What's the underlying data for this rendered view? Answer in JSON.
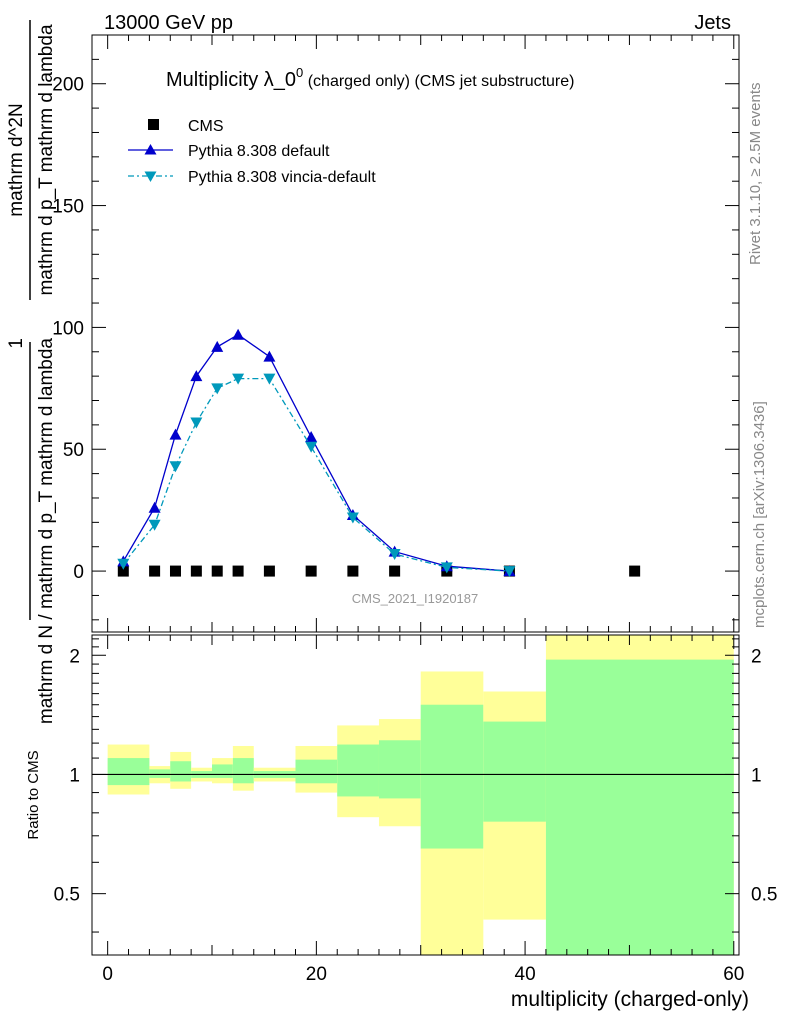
{
  "header": {
    "left": "13000 GeV pp",
    "right": "Jets"
  },
  "side": {
    "rivet": "Rivet 3.1.10, ≥ 2.5M events",
    "mcplots": "mcplots.cern.ch [arXiv:1306.3436]"
  },
  "main": {
    "title_main": "Multiplicity λ_0",
    "title_sup": "0",
    "title_small": " (charged only) (CMS jet substructure)",
    "analysis_label": "CMS_2021_I1920187",
    "ylabel_top": "1",
    "ylabel_bottom": "mathrm d N / mathrm d p_T mathrm d lambda",
    "ylabel_top_line2": "mathrm d^2N",
    "ylabel_bottom_line2": "mathrm d p_T mathrm d lambda",
    "legend": [
      {
        "key": "cms",
        "label": "CMS",
        "color": "#000000",
        "marker": "square"
      },
      {
        "key": "default",
        "label": "Pythia 8.308 default",
        "color": "#0000cc",
        "marker": "triangle-up"
      },
      {
        "key": "vincia",
        "label": "Pythia 8.308 vincia-default",
        "color": "#0099bb",
        "marker": "triangle-down"
      }
    ]
  },
  "ratio": {
    "ylabel": "Ratio to CMS",
    "xlabel": "multiplicity (charged-only)"
  },
  "chart_data": [
    {
      "type": "line",
      "title": "Multiplicity λ_0^0 (charged only) (CMS jet substructure)",
      "xlabel": "multiplicity (charged-only)",
      "ylabel": "1 / mathrm d N / mathrm d p_T mathrm d lambda · mathrm d^2N / mathrm d p_T mathrm d lambda",
      "xlim": [
        -1.5,
        60.5
      ],
      "ylim": [
        -25,
        220
      ],
      "xticks": [
        0,
        20,
        40,
        60
      ],
      "yticks": [
        0,
        50,
        100,
        150,
        200
      ],
      "legend_position": "top-left",
      "series": [
        {
          "name": "CMS",
          "marker": "square",
          "color": "#000000",
          "x": [
            1.5,
            4.5,
            6.5,
            8.5,
            10.5,
            12.5,
            15.5,
            19.5,
            23.5,
            27.5,
            32.5,
            38.5,
            50.5
          ],
          "y": [
            0,
            0,
            0,
            0,
            0,
            0,
            0,
            0,
            0,
            0,
            0,
            0,
            0
          ]
        },
        {
          "name": "Pythia 8.308 default",
          "marker": "triangle-up",
          "line": "solid",
          "color": "#0000cc",
          "x": [
            1.5,
            4.5,
            6.5,
            8.5,
            10.5,
            12.5,
            15.5,
            19.5,
            23.5,
            27.5,
            32.5,
            38.5
          ],
          "y": [
            4,
            26,
            56,
            80,
            92,
            97,
            88,
            55,
            23,
            8,
            2,
            0
          ]
        },
        {
          "name": "Pythia 8.308 vincia-default",
          "marker": "triangle-down",
          "line": "dash-dot",
          "color": "#0099bb",
          "x": [
            1.5,
            4.5,
            6.5,
            8.5,
            10.5,
            12.5,
            15.5,
            19.5,
            23.5,
            27.5,
            32.5,
            38.5
          ],
          "y": [
            3,
            19,
            43,
            61,
            75,
            79,
            79,
            51,
            22,
            7,
            1.5,
            0
          ]
        }
      ]
    },
    {
      "type": "area",
      "title": "",
      "ylabel": "Ratio to CMS",
      "xlabel": "multiplicity (charged-only)",
      "xlim": [
        -1.5,
        60.5
      ],
      "ylim": [
        0.35,
        2.25
      ],
      "xticks": [
        0,
        20,
        40,
        60
      ],
      "yticks": [
        0.5,
        1,
        2
      ],
      "reference_line": 1,
      "bins": [
        {
          "lo": 0,
          "hi": 4,
          "yellow": [
            0.89,
            1.19
          ],
          "green": [
            0.94,
            1.1
          ]
        },
        {
          "lo": 4,
          "hi": 6,
          "yellow": [
            0.95,
            1.05
          ],
          "green": [
            0.98,
            1.03
          ]
        },
        {
          "lo": 6,
          "hi": 8,
          "yellow": [
            0.92,
            1.14
          ],
          "green": [
            0.96,
            1.08
          ]
        },
        {
          "lo": 8,
          "hi": 10,
          "yellow": [
            0.96,
            1.04
          ],
          "green": [
            0.98,
            1.02
          ]
        },
        {
          "lo": 10,
          "hi": 12,
          "yellow": [
            0.95,
            1.1
          ],
          "green": [
            0.98,
            1.06
          ]
        },
        {
          "lo": 12,
          "hi": 14,
          "yellow": [
            0.91,
            1.18
          ],
          "green": [
            0.95,
            1.1
          ]
        },
        {
          "lo": 14,
          "hi": 18,
          "yellow": [
            0.96,
            1.04
          ],
          "green": [
            0.98,
            1.02
          ]
        },
        {
          "lo": 18,
          "hi": 22,
          "yellow": [
            0.9,
            1.18
          ],
          "green": [
            0.95,
            1.09
          ]
        },
        {
          "lo": 22,
          "hi": 26,
          "yellow": [
            0.78,
            1.33
          ],
          "green": [
            0.88,
            1.19
          ]
        },
        {
          "lo": 26,
          "hi": 30,
          "yellow": [
            0.74,
            1.38
          ],
          "green": [
            0.87,
            1.22
          ]
        },
        {
          "lo": 30,
          "hi": 36,
          "yellow": [
            0.3,
            1.82
          ],
          "green": [
            0.65,
            1.5
          ]
        },
        {
          "lo": 36,
          "hi": 42,
          "yellow": [
            0.43,
            1.62
          ],
          "green": [
            0.76,
            1.36
          ]
        },
        {
          "lo": 42,
          "hi": 60,
          "yellow": [
            0.3,
            2.6
          ],
          "green": [
            0.3,
            1.95
          ]
        }
      ]
    }
  ]
}
